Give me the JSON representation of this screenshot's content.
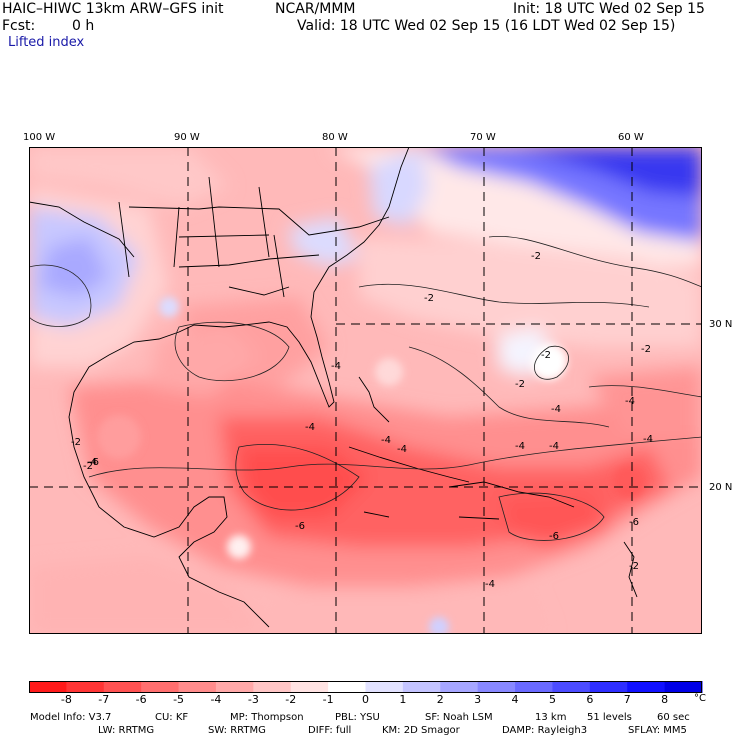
{
  "header": {
    "model": "HAIC–HIWC 13km ARW–GFS init",
    "org": "NCAR/MMM",
    "init": "Init: 18 UTC Wed 02 Sep 15",
    "fcst_label": "Fcst:",
    "fcst_value": "0 h",
    "valid": "Valid: 18 UTC Wed 02 Sep 15 (16 LDT Wed 02 Sep 15)",
    "field": "Lifted index"
  },
  "lon_labels": [
    "100 W",
    "90 W",
    "80 W",
    "70 W",
    "60 W"
  ],
  "lat_labels": [
    "30 N",
    "20 N"
  ],
  "contour_labels": [
    "-2",
    "-2",
    "-2",
    "-2",
    "-2",
    "-2",
    "-2",
    "-2",
    "-4",
    "-4",
    "-4",
    "-4",
    "-4",
    "-4",
    "-4",
    "-4",
    "-4",
    "-4",
    "-4",
    "-6",
    "-6",
    "-6",
    "-6"
  ],
  "colorbar": {
    "labels": [
      "-8",
      "-7",
      "-6",
      "-5",
      "-4",
      "-3",
      "-2",
      "-1",
      "0",
      "1",
      "2",
      "3",
      "4",
      "5",
      "6",
      "7",
      "8"
    ],
    "unit": "°C",
    "colors": [
      "#ff1a1a",
      "#ff3535",
      "#ff5252",
      "#ff6f6f",
      "#ff8c8c",
      "#ffa9a9",
      "#ffc6c6",
      "#ffe3e3",
      "#ffffff",
      "#e2e2ff",
      "#c4c4ff",
      "#a6a6ff",
      "#8888ff",
      "#6a6aff",
      "#4c4cff",
      "#2e2eff",
      "#1010ff",
      "#0000e6"
    ]
  },
  "footer": {
    "line1": [
      "Model Info: V3.7",
      "CU: KF",
      "MP: Thompson",
      "PBL: YSU",
      "SF: Noah LSM",
      "13 km",
      "51 levels",
      "60 sec"
    ],
    "line2": [
      "LW: RRTMG",
      "SW: RRTMG",
      "DIFF: full",
      "KM: 2D Smagor",
      "DAMP: Rayleigh3",
      "SFLAY: MM5"
    ]
  }
}
